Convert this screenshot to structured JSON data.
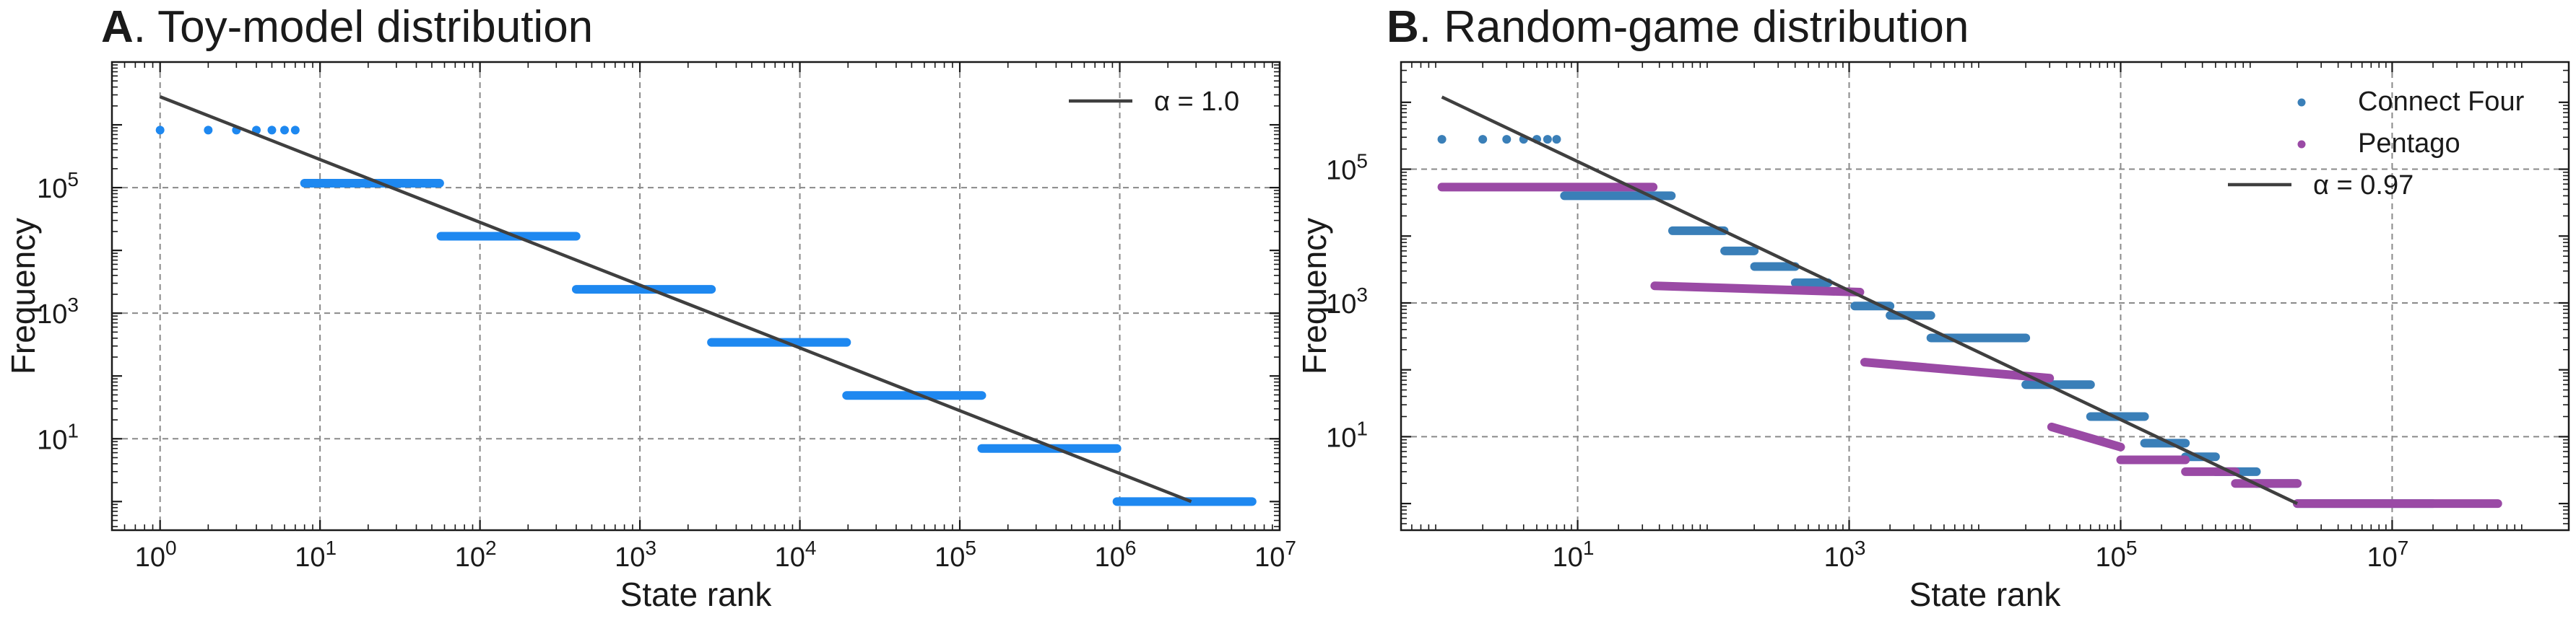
{
  "chart_data": [
    {
      "type": "scatter",
      "panel_letter": "A",
      "title": ". Toy-model distribution",
      "xlabel": "State rank",
      "ylabel": "Frequency",
      "xscale": "log",
      "yscale": "log",
      "xlim": [
        0.5,
        10000000
      ],
      "ylim": [
        0.35,
        10000000
      ],
      "x_ticks": [
        1,
        10,
        100,
        1000,
        10000,
        100000,
        1000000,
        10000000
      ],
      "x_tick_labels": [
        [
          "10",
          "0"
        ],
        [
          "10",
          "1"
        ],
        [
          "10",
          "2"
        ],
        [
          "10",
          "3"
        ],
        [
          "10",
          "4"
        ],
        [
          "10",
          "5"
        ],
        [
          "10",
          "6"
        ],
        [
          "10",
          "7"
        ]
      ],
      "y_ticks": [
        10,
        1000,
        100000
      ],
      "y_tick_labels": [
        [
          "10",
          "1"
        ],
        [
          "10",
          "3"
        ],
        [
          "10",
          "5"
        ]
      ],
      "grid": true,
      "legend_position": "top-right",
      "colors": {
        "points": "#1e88f0",
        "fit": "#3f3f3f"
      },
      "series": [
        {
          "kind": "steps",
          "color": "#1e88f0",
          "levels": [
            {
              "x_start": 1,
              "x_end": 7,
              "y": 823543
            },
            {
              "x_start": 8,
              "x_end": 56,
              "y": 117649
            },
            {
              "x_start": 57,
              "x_end": 399,
              "y": 16807
            },
            {
              "x_start": 400,
              "x_end": 2800,
              "y": 2401
            },
            {
              "x_start": 2801,
              "x_end": 19600,
              "y": 343
            },
            {
              "x_start": 19601,
              "x_end": 137200,
              "y": 49
            },
            {
              "x_start": 137201,
              "x_end": 960400,
              "y": 7
            },
            {
              "x_start": 960401,
              "x_end": 6723600,
              "y": 1
            }
          ]
        },
        {
          "kind": "fit",
          "name": "α = 1.0",
          "color": "#3f3f3f",
          "x": [
            1,
            2800000
          ],
          "y": [
            2800000,
            1
          ]
        }
      ]
    },
    {
      "type": "scatter",
      "panel_letter": "B",
      "title": ". Random-game distribution",
      "xlabel": "State rank",
      "ylabel": "Frequency",
      "xscale": "log",
      "yscale": "log",
      "xlim": [
        0.5,
        200000000
      ],
      "ylim": [
        0.4,
        4000000
      ],
      "x_ticks": [
        10,
        1000,
        100000,
        10000000
      ],
      "x_tick_labels": [
        [
          "10",
          "1"
        ],
        [
          "10",
          "3"
        ],
        [
          "10",
          "5"
        ],
        [
          "10",
          "7"
        ]
      ],
      "y_ticks": [
        10,
        1000,
        100000
      ],
      "y_tick_labels": [
        [
          "10",
          "1"
        ],
        [
          "10",
          "3"
        ],
        [
          "10",
          "5"
        ]
      ],
      "grid": true,
      "legend_position": "top-right",
      "colors": {
        "connect_four": "#3a7fb8",
        "pentago": "#9a4aa5",
        "fit": "#3f3f3f"
      },
      "series": [
        {
          "kind": "steps",
          "name": "Connect Four",
          "color": "#3a7fb8",
          "levels": [
            {
              "x_start": 1,
              "x_end": 7,
              "y": 280000
            },
            {
              "x_start": 8,
              "x_end": 49,
              "y": 40000
            },
            {
              "x_start": 50,
              "x_end": 120,
              "y": 12000
            },
            {
              "x_start": 121,
              "x_end": 200,
              "y": 6000
            },
            {
              "x_start": 201,
              "x_end": 400,
              "y": 3500
            },
            {
              "x_start": 401,
              "x_end": 700,
              "y": 2000
            },
            {
              "x_start": 1100,
              "x_end": 2000,
              "y": 900
            },
            {
              "x_start": 2000,
              "x_end": 4000,
              "y": 650
            },
            {
              "x_start": 4000,
              "x_end": 20000,
              "y": 300
            },
            {
              "x_start": 20000,
              "x_end": 60000,
              "y": 60
            },
            {
              "x_start": 60000,
              "x_end": 150000,
              "y": 20
            },
            {
              "x_start": 150000,
              "x_end": 300000,
              "y": 8
            },
            {
              "x_start": 300000,
              "x_end": 500000,
              "y": 5
            },
            {
              "x_start": 500000,
              "x_end": 1000000,
              "y": 3
            },
            {
              "x_start": 1000000,
              "x_end": 2000000,
              "y": 2
            },
            {
              "x_start": 2000000,
              "x_end": 20000000,
              "y": 1
            }
          ]
        },
        {
          "kind": "steps",
          "name": "Pentago",
          "color": "#9a4aa5",
          "levels": [
            {
              "x_start": 1,
              "x_end": 36,
              "y": 54000
            },
            {
              "x_start": 37,
              "x_end": 1200,
              "y": 1800,
              "y_end": 1450
            },
            {
              "x_start": 1300,
              "x_end": 30000,
              "y": 130,
              "y_end": 75
            },
            {
              "x_start": 31000,
              "x_end": 100000,
              "y": 14,
              "y_end": 7
            },
            {
              "x_start": 100000,
              "x_end": 300000,
              "y": 4.5
            },
            {
              "x_start": 300000,
              "x_end": 700000,
              "y": 3
            },
            {
              "x_start": 700000,
              "x_end": 2000000,
              "y": 2
            },
            {
              "x_start": 2000000,
              "x_end": 60000000,
              "y": 1
            }
          ]
        },
        {
          "kind": "fit",
          "name": "α = 0.97",
          "color": "#3f3f3f",
          "x": [
            1,
            2000000
          ],
          "y": [
            1200000,
            1
          ]
        }
      ]
    }
  ]
}
